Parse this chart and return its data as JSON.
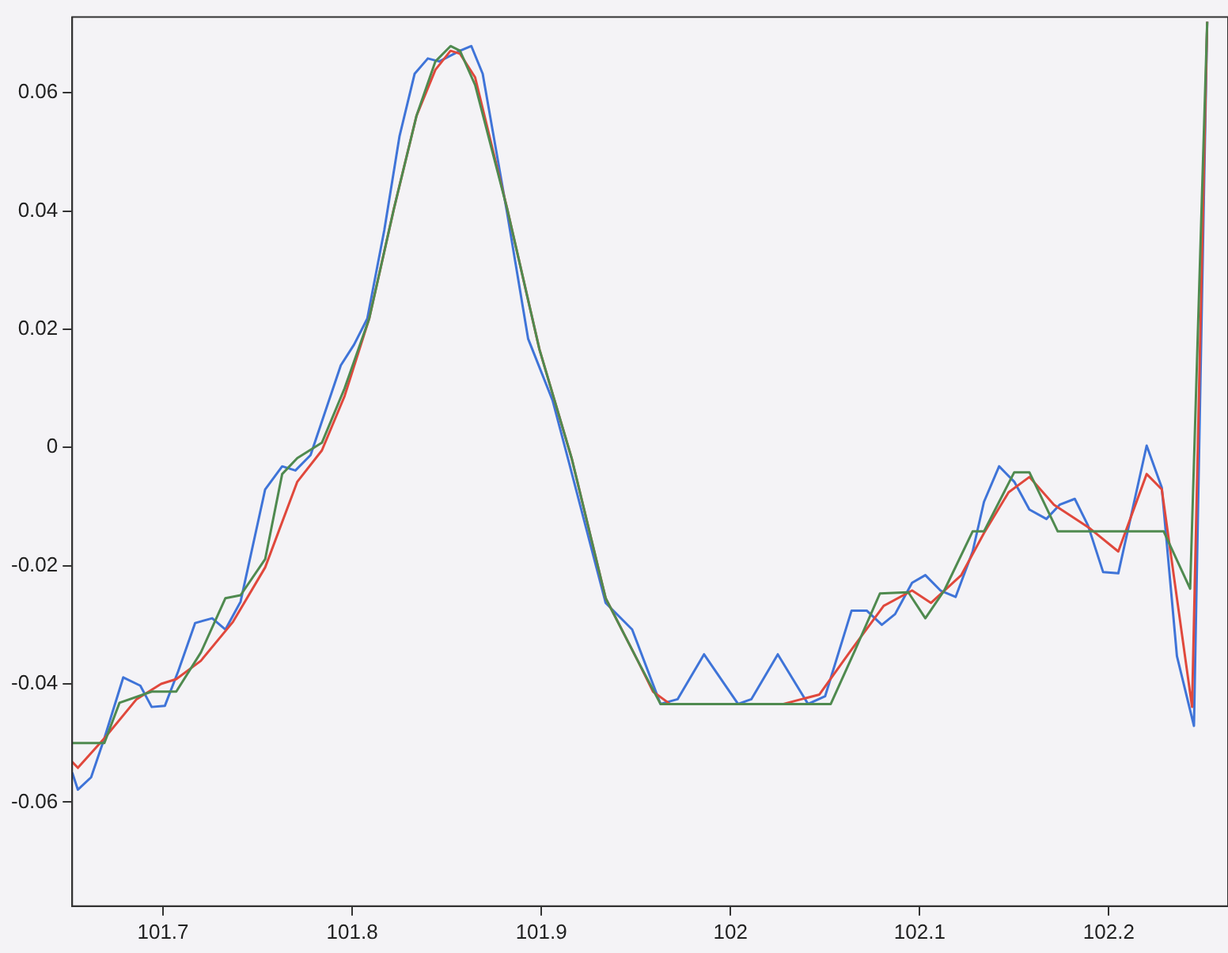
{
  "chart_data": {
    "type": "line",
    "xlim": [
      101.652,
      102.263
    ],
    "xticks": [
      101.7,
      101.8,
      101.9,
      102,
      102.1,
      102.2
    ],
    "ylim": [
      -0.0776,
      0.0728
    ],
    "yticks": [
      -0.06,
      -0.04,
      -0.02,
      0,
      0.02,
      0.04,
      0.06
    ],
    "grid": false,
    "legend": false,
    "marker": "none",
    "series": [
      {
        "color": "#4f8a4f",
        "x": [
          101.652,
          101.669,
          101.677,
          101.694,
          101.707,
          101.72,
          101.733,
          101.741,
          101.754,
          101.763,
          101.771,
          101.784,
          101.796,
          101.809,
          101.822,
          101.834,
          101.844,
          101.852,
          101.857,
          101.865,
          101.882,
          101.899,
          101.916,
          101.934,
          101.951,
          101.963,
          102.053,
          102.066,
          102.079,
          102.094,
          102.103,
          102.113,
          102.128,
          102.134,
          102.15,
          102.158,
          102.173,
          102.229,
          102.243,
          102.252
        ],
        "values": [
          -0.05,
          -0.05,
          -0.0432,
          -0.0413,
          -0.0413,
          -0.0347,
          -0.0255,
          -0.025,
          -0.0189,
          -0.0045,
          -0.0018,
          0.0008,
          0.01,
          0.0218,
          0.0403,
          0.0561,
          0.0653,
          0.0679,
          0.0671,
          0.0613,
          0.0403,
          0.0166,
          -0.0018,
          -0.0255,
          -0.0361,
          -0.0434,
          -0.0434,
          -0.0342,
          -0.0247,
          -0.0245,
          -0.0289,
          -0.0242,
          -0.0142,
          -0.0142,
          -0.0042,
          -0.0042,
          -0.0142,
          -0.0142,
          -0.0239,
          0.072
        ]
      },
      {
        "color": "#e0483c",
        "x": [
          101.652,
          101.655,
          101.669,
          101.686,
          101.699,
          101.707,
          101.72,
          101.737,
          101.754,
          101.771,
          101.784,
          101.796,
          101.809,
          101.822,
          101.834,
          101.844,
          101.852,
          101.857,
          101.865,
          101.882,
          101.899,
          101.916,
          101.934,
          101.951,
          101.959,
          101.968,
          102.028,
          102.047,
          102.064,
          102.081,
          102.096,
          102.106,
          102.122,
          102.134,
          102.147,
          102.158,
          102.171,
          102.19,
          102.205,
          102.22,
          102.228,
          102.244,
          102.252
        ],
        "values": [
          -0.0532,
          -0.0542,
          -0.0492,
          -0.0426,
          -0.04,
          -0.0392,
          -0.0361,
          -0.0295,
          -0.0203,
          -0.0058,
          -0.0005,
          0.0087,
          0.0218,
          0.0403,
          0.0561,
          0.0639,
          0.0671,
          0.0666,
          0.0626,
          0.0403,
          0.0166,
          -0.0018,
          -0.0255,
          -0.0361,
          -0.0413,
          -0.0434,
          -0.0434,
          -0.0418,
          -0.0342,
          -0.0268,
          -0.0242,
          -0.0263,
          -0.0216,
          -0.0145,
          -0.0076,
          -0.005,
          -0.0097,
          -0.0137,
          -0.0176,
          -0.0045,
          -0.0071,
          -0.0439,
          0.072
        ]
      },
      {
        "color": "#3f74d8",
        "x": [
          101.652,
          101.655,
          101.662,
          101.669,
          101.679,
          101.688,
          101.694,
          101.701,
          101.708,
          101.717,
          101.726,
          101.733,
          101.741,
          101.754,
          101.763,
          101.77,
          101.778,
          101.794,
          101.801,
          101.808,
          101.817,
          101.825,
          101.833,
          101.84,
          101.846,
          101.857,
          101.863,
          101.869,
          101.882,
          101.893,
          101.906,
          101.914,
          101.934,
          101.948,
          101.963,
          101.972,
          101.986,
          102.004,
          102.011,
          102.025,
          102.041,
          102.05,
          102.064,
          102.072,
          102.08,
          102.087,
          102.096,
          102.103,
          102.111,
          102.119,
          102.128,
          102.134,
          102.142,
          102.15,
          102.158,
          102.167,
          102.174,
          102.182,
          102.189,
          102.197,
          102.205,
          102.22,
          102.228,
          102.236,
          102.245,
          102.252
        ],
        "values": [
          -0.055,
          -0.0579,
          -0.0558,
          -0.0492,
          -0.0389,
          -0.0403,
          -0.0439,
          -0.0437,
          -0.0379,
          -0.0297,
          -0.0289,
          -0.0308,
          -0.0261,
          -0.0071,
          -0.0032,
          -0.0039,
          -0.0013,
          0.0139,
          0.0174,
          0.0218,
          0.0368,
          0.0526,
          0.0632,
          0.0658,
          0.0653,
          0.0671,
          0.0679,
          0.0632,
          0.0395,
          0.0184,
          0.0079,
          -0.0018,
          -0.0263,
          -0.0308,
          -0.0434,
          -0.0426,
          -0.035,
          -0.0434,
          -0.0426,
          -0.035,
          -0.0434,
          -0.0421,
          -0.0276,
          -0.0276,
          -0.03,
          -0.0282,
          -0.0229,
          -0.0216,
          -0.0242,
          -0.0253,
          -0.0176,
          -0.0092,
          -0.0032,
          -0.0058,
          -0.0105,
          -0.0121,
          -0.0097,
          -0.0087,
          -0.0132,
          -0.0211,
          -0.0213,
          0.0003,
          -0.0068,
          -0.0353,
          -0.0471,
          0.072
        ]
      }
    ]
  }
}
